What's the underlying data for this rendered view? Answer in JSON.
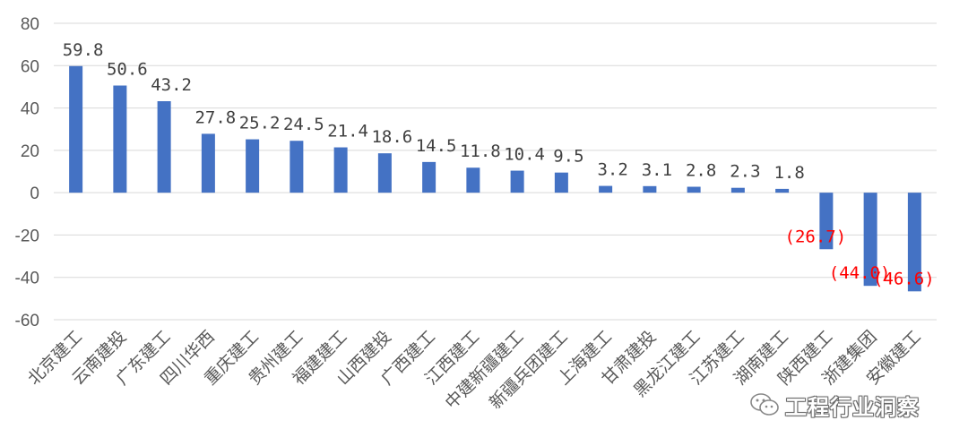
{
  "chart_data": {
    "type": "bar",
    "title": "",
    "xlabel": "",
    "ylabel": "",
    "ylim": [
      -60,
      80
    ],
    "y_ticks": [
      "80",
      "60",
      "40",
      "20",
      "0",
      "-20",
      "-40",
      "-60"
    ],
    "grid": "horizontal",
    "bar_color": "#4472c4",
    "negative_label_color": "#ff0000",
    "categories": [
      "北京建工",
      "云南建投",
      "广东建工",
      "四川华西",
      "重庆建工",
      "贵州建工",
      "福建建工",
      "山西建投",
      "广西建工",
      "江西建工",
      "中建新疆建工",
      "新疆兵团建工",
      "上海建工",
      "甘肃建投",
      "黑龙江建工",
      "江苏建工",
      "湖南建工",
      "陕西建工",
      "浙建集团",
      "安徽建工"
    ],
    "values": [
      59.8,
      50.6,
      43.2,
      27.8,
      25.2,
      24.5,
      21.4,
      18.6,
      14.5,
      11.8,
      10.4,
      9.5,
      3.2,
      3.1,
      2.8,
      2.3,
      1.8,
      -26.7,
      -44.0,
      -46.6
    ],
    "data_labels": [
      "59.8",
      "50.6",
      "43.2",
      "27.8",
      "25.2",
      "24.5",
      "21.4",
      "18.6",
      "14.5",
      "11.8",
      "10.4",
      "9.5",
      "3.2",
      "3.1",
      "2.8",
      "2.3",
      "1.8",
      "(26.7)",
      "(44.0)",
      "(46.6)"
    ]
  },
  "watermark": {
    "text": "工程行业洞察",
    "icon": "wechat-icon"
  }
}
